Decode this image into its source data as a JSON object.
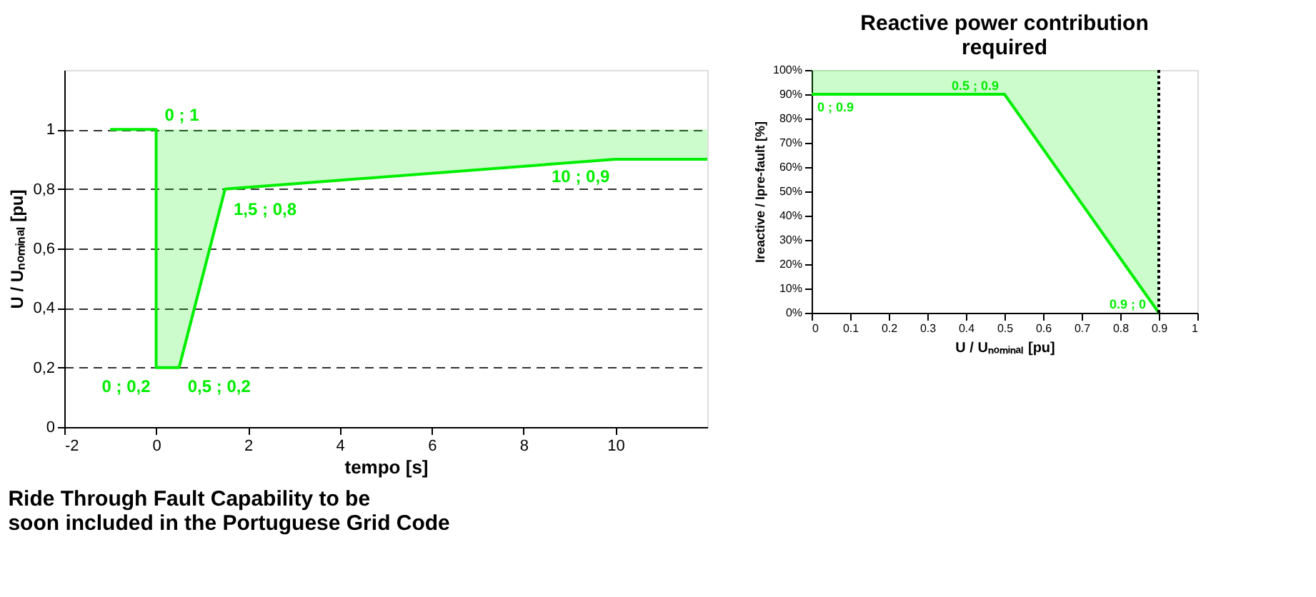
{
  "chart_data": [
    {
      "type": "line",
      "xlabel": "tempo [s]",
      "ylabel": "U / Uₙₒₘᵢₙₐₗ [pu]",
      "xlim": [
        -2,
        12
      ],
      "xticks": [
        -2,
        0,
        2,
        4,
        6,
        8,
        10
      ],
      "ylim": [
        0,
        1.2
      ],
      "yticks": [
        0,
        {
          "value": 0.2,
          "label": "0,2"
        },
        {
          "value": 0.4,
          "label": "0,4"
        },
        {
          "value": 0.6,
          "label": "0,6"
        },
        {
          "value": 0.8,
          "label": "0,8"
        },
        1
      ],
      "grid": "y",
      "marker": "none",
      "line_style": "solid",
      "series": [
        {
          "color": "#00ee00",
          "x": [
            -1,
            0,
            0,
            0.5,
            1.5,
            10,
            12
          ],
          "values": [
            1,
            1,
            0.2,
            0.2,
            0.8,
            0.9,
            0.9
          ],
          "lower": [
            null,
            1,
            0.2,
            0.2,
            0.8,
            0.9,
            0.9
          ],
          "upper": [
            null,
            1,
            1,
            1,
            1,
            1,
            1
          ]
        }
      ],
      "annotations": [
        {
          "text": "0 ; 1",
          "x": 0,
          "y": 1
        },
        {
          "text": "0 ; 0,2",
          "x": 0,
          "y": 0.2
        },
        {
          "text": "0,5 ; 0,2",
          "x": 0.5,
          "y": 0.2
        },
        {
          "text": "1,5 ; 0,8",
          "x": 1.5,
          "y": 0.8
        },
        {
          "text": "10 ; 0,9",
          "x": 10,
          "y": 0.9
        },
        "Ride Through Fault Capability to be\nsoon included in the Portuguese Grid Code"
      ]
    },
    {
      "type": "line",
      "title": "Reactive power contribution\nrequired",
      "xlabel": "U / Uₙₒₘᵢₙₐₗ [pu]",
      "ylabel": "Ireactive / Ipre-fault [%]",
      "xlim": [
        0,
        1
      ],
      "xticks": [
        0,
        0.1,
        0.2,
        0.3,
        0.4,
        0.5,
        0.6,
        0.7,
        0.8,
        0.9,
        1
      ],
      "ylim": [
        0,
        100
      ],
      "yticks": [
        {
          "value": 0,
          "label": "0%"
        },
        {
          "value": 10,
          "label": "10%"
        },
        {
          "value": 20,
          "label": "20%"
        },
        {
          "value": 30,
          "label": "30%"
        },
        {
          "value": 40,
          "label": "40%"
        },
        {
          "value": 50,
          "label": "50%"
        },
        {
          "value": 60,
          "label": "60%"
        },
        {
          "value": 70,
          "label": "70%"
        },
        {
          "value": 80,
          "label": "80%"
        },
        {
          "value": 90,
          "label": "90%"
        },
        {
          "value": 100,
          "label": "100%"
        }
      ],
      "grid": false,
      "marker": "none",
      "line_style": "solid",
      "series": [
        {
          "color": "#00ee00",
          "x": [
            0,
            0.5,
            0.9
          ],
          "values": [
            90,
            90,
            0
          ],
          "lower": [
            90,
            90,
            0
          ],
          "upper": [
            100,
            100,
            100
          ]
        }
      ],
      "ref_lines": [
        {
          "axis": "x",
          "value": 0.9,
          "color": "#000000",
          "line_style": "dotted"
        }
      ],
      "annotations": [
        {
          "text": "0 ; 0.9",
          "x": 0,
          "y": 90
        },
        {
          "text": "0.5 ; 0.9",
          "x": 0.5,
          "y": 90
        },
        {
          "text": "0.9 ; 0",
          "x": 0.9,
          "y": 0
        }
      ]
    }
  ]
}
